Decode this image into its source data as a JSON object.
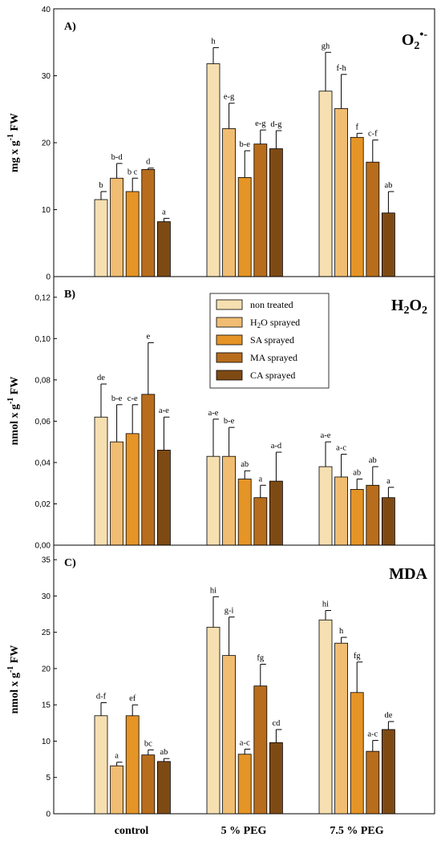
{
  "chart_data": [
    {
      "type": "bar",
      "panel_label": "A)",
      "metric": "O2•-",
      "ylabel": "mg x g-1 FW",
      "ylim": [
        0,
        40
      ],
      "yticks": [
        "0",
        "10",
        "20",
        "30",
        "40"
      ],
      "categories": [
        "control",
        "5 % PEG",
        "7.5 % PEG"
      ],
      "series": [
        {
          "name": "non treated",
          "color": "#f6dfb0",
          "values": [
            11.5,
            31.8,
            27.7
          ],
          "errors": [
            1.2,
            2.4,
            5.8
          ],
          "labels": [
            "b",
            "h",
            "gh"
          ]
        },
        {
          "name": "H2O sprayed",
          "color": "#f0bd72",
          "values": [
            14.7,
            22.1,
            25.1
          ],
          "errors": [
            2.2,
            3.8,
            5.1
          ],
          "labels": [
            "b-d",
            "e-g",
            "f-h"
          ]
        },
        {
          "name": "SA sprayed",
          "color": "#e59426",
          "values": [
            12.7,
            14.8,
            20.8
          ],
          "errors": [
            2.0,
            4.0,
            0.6
          ],
          "labels": [
            "b c",
            "b-e",
            "f"
          ]
        },
        {
          "name": "MA sprayed",
          "color": "#b86d1c",
          "values": [
            16.0,
            19.8,
            17.1
          ],
          "errors": [
            0.2,
            2.1,
            3.3
          ],
          "labels": [
            "d",
            "e-g",
            "c-f"
          ]
        },
        {
          "name": "CA sprayed",
          "color": "#7e4a14",
          "values": [
            8.2,
            19.1,
            9.5
          ],
          "errors": [
            0.5,
            2.7,
            3.2
          ],
          "labels": [
            "a",
            "d-g",
            "ab"
          ]
        }
      ]
    },
    {
      "type": "bar",
      "panel_label": "B)",
      "metric": "H2O2",
      "ylabel": "nmol x g-1 FW",
      "ylim": [
        0,
        0.13
      ],
      "yticks": [
        "0,00",
        "0,02",
        "0,04",
        "0,06",
        "0,08",
        "0,10",
        "0,12"
      ],
      "categories": [
        "control",
        "5 % PEG",
        "7.5 % PEG"
      ],
      "legend": {
        "position": "top-center",
        "entries": [
          "non treated",
          "H2O sprayed",
          "SA sprayed",
          "MA sprayed",
          "CA sprayed"
        ]
      },
      "series": [
        {
          "name": "non treated",
          "color": "#f6dfb0",
          "values": [
            0.062,
            0.043,
            0.038
          ],
          "errors": [
            0.016,
            0.018,
            0.012
          ],
          "labels": [
            "de",
            "a-e",
            "a-e"
          ]
        },
        {
          "name": "H2O sprayed",
          "color": "#f0bd72",
          "values": [
            0.05,
            0.043,
            0.033
          ],
          "errors": [
            0.018,
            0.014,
            0.011
          ],
          "labels": [
            "b-e",
            "b-e",
            "a-c"
          ]
        },
        {
          "name": "SA sprayed",
          "color": "#e59426",
          "values": [
            0.054,
            0.032,
            0.027
          ],
          "errors": [
            0.014,
            0.004,
            0.005
          ],
          "labels": [
            "c-e",
            "ab",
            "ab"
          ]
        },
        {
          "name": "MA sprayed",
          "color": "#b86d1c",
          "values": [
            0.073,
            0.023,
            0.029
          ],
          "errors": [
            0.025,
            0.006,
            0.009
          ],
          "labels": [
            "e",
            "a",
            "ab"
          ]
        },
        {
          "name": "CA sprayed",
          "color": "#7e4a14",
          "values": [
            0.046,
            0.031,
            0.023
          ],
          "errors": [
            0.016,
            0.014,
            0.005
          ],
          "labels": [
            "a-e",
            "a-d",
            "a"
          ]
        }
      ]
    },
    {
      "type": "bar",
      "panel_label": "C)",
      "metric": "MDA",
      "ylabel": "nmol x g-1 FW",
      "ylim": [
        0,
        37
      ],
      "yticks": [
        "0",
        "5",
        "10",
        "15",
        "20",
        "25",
        "30",
        "35"
      ],
      "categories": [
        "control",
        "5 % PEG",
        "7.5 % PEG"
      ],
      "series": [
        {
          "name": "non treated",
          "color": "#f6dfb0",
          "values": [
            13.5,
            25.7,
            26.7
          ],
          "errors": [
            1.8,
            4.2,
            1.3
          ],
          "labels": [
            "d-f",
            "hi",
            "hi"
          ]
        },
        {
          "name": "H2O sprayed",
          "color": "#f0bd72",
          "values": [
            6.6,
            21.8,
            23.5
          ],
          "errors": [
            0.5,
            5.3,
            0.8
          ],
          "labels": [
            "a",
            "g-i",
            "h"
          ]
        },
        {
          "name": "SA sprayed",
          "color": "#e59426",
          "values": [
            13.5,
            8.2,
            16.7
          ],
          "errors": [
            1.5,
            0.7,
            4.2
          ],
          "labels": [
            "ef",
            "a-c",
            "fg"
          ]
        },
        {
          "name": "MA sprayed",
          "color": "#b86d1c",
          "values": [
            8.1,
            17.6,
            8.6
          ],
          "errors": [
            0.7,
            3.0,
            1.5
          ],
          "labels": [
            "bc",
            "fg",
            "a-c"
          ]
        },
        {
          "name": "CA sprayed",
          "color": "#7e4a14",
          "values": [
            7.2,
            9.8,
            11.6
          ],
          "errors": [
            0.4,
            1.8,
            1.1
          ],
          "labels": [
            "ab",
            "cd",
            "de"
          ]
        }
      ]
    }
  ]
}
